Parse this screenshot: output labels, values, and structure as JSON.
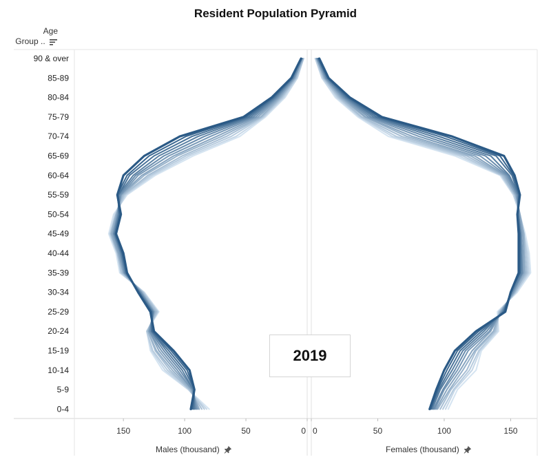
{
  "chart_data": {
    "type": "line",
    "title": "Resident Population Pyramid",
    "year": "2019",
    "age_axis_label": "Age Group ..",
    "age_axis_label_line1": "Age",
    "age_axis_label_line2": "Group ..",
    "categories": [
      "0-4",
      "5-9",
      "10-14",
      "15-19",
      "20-24",
      "25-29",
      "30-34",
      "35-39",
      "40-44",
      "45-49",
      "50-54",
      "55-59",
      "60-64",
      "65-69",
      "70-74",
      "75-79",
      "80-84",
      "85-89",
      "90 & over"
    ],
    "male_axis": {
      "label": "Males (thousand)",
      "ticks": [
        150,
        100,
        50,
        0
      ],
      "range": [
        0,
        190
      ]
    },
    "female_axis": {
      "label": "Females (thousand)",
      "ticks": [
        0,
        50,
        100,
        150
      ],
      "range": [
        0,
        170
      ]
    },
    "colors": {
      "oldest": "#d5e4f1",
      "newest": "#2b5a86"
    },
    "series": [
      {
        "males": [
          80,
          97,
          118,
          128,
          131,
          121,
          133,
          153,
          156,
          162,
          158,
          147,
          124,
          93,
          55,
          34,
          18,
          8,
          3
        ],
        "females": [
          103,
          110,
          124,
          128,
          141,
          140,
          155,
          165,
          164,
          161,
          157,
          152,
          142,
          108,
          58,
          35,
          18,
          8,
          3
        ]
      },
      {
        "males": [
          82,
          97,
          116,
          127,
          131,
          122,
          133,
          152,
          155,
          161,
          157,
          148,
          126,
          96,
          58,
          35,
          19,
          8,
          3
        ],
        "females": [
          101,
          108,
          121,
          127,
          140,
          141,
          154,
          164,
          163,
          160,
          157,
          152,
          143,
          111,
          61,
          36,
          19,
          8,
          3
        ]
      },
      {
        "males": [
          84,
          96,
          114,
          126,
          131,
          122,
          134,
          152,
          155,
          161,
          156,
          149,
          128,
          99,
          62,
          36,
          20,
          9,
          3
        ],
        "females": [
          99,
          107,
          119,
          126,
          139,
          141,
          154,
          163,
          162,
          160,
          157,
          153,
          143,
          114,
          64,
          37,
          20,
          9,
          3
        ]
      },
      {
        "males": [
          86,
          96,
          112,
          124,
          130,
          123,
          134,
          151,
          155,
          160,
          156,
          150,
          130,
          102,
          66,
          37,
          21,
          9,
          3
        ],
        "females": [
          97,
          105,
          117,
          124,
          138,
          142,
          153,
          162,
          161,
          160,
          157,
          153,
          144,
          117,
          68,
          38,
          21,
          9,
          4
        ]
      },
      {
        "males": [
          88,
          95,
          110,
          123,
          130,
          124,
          135,
          150,
          154,
          160,
          156,
          151,
          133,
          106,
          70,
          38,
          22,
          10,
          4
        ],
        "females": [
          95,
          104,
          114,
          123,
          137,
          142,
          153,
          161,
          160,
          160,
          157,
          154,
          145,
          120,
          72,
          40,
          22,
          10,
          4
        ]
      },
      {
        "males": [
          89,
          94,
          108,
          121,
          129,
          125,
          135,
          150,
          154,
          159,
          155,
          152,
          135,
          109,
          74,
          40,
          23,
          10,
          4
        ],
        "females": [
          94,
          102,
          112,
          121,
          135,
          143,
          152,
          160,
          160,
          159,
          157,
          154,
          146,
          123,
          76,
          41,
          23,
          10,
          4
        ]
      },
      {
        "males": [
          90,
          94,
          106,
          119,
          129,
          125,
          136,
          149,
          153,
          158,
          155,
          152,
          138,
          113,
          79,
          42,
          24,
          11,
          4
        ],
        "females": [
          93,
          100,
          110,
          118,
          134,
          143,
          152,
          159,
          159,
          158,
          156,
          155,
          147,
          127,
          81,
          43,
          24,
          11,
          4
        ]
      },
      {
        "males": [
          91,
          93,
          104,
          117,
          128,
          126,
          136,
          149,
          152,
          158,
          154,
          153,
          140,
          117,
          84,
          44,
          25,
          11,
          4
        ],
        "females": [
          92,
          99,
          108,
          116,
          132,
          144,
          151,
          159,
          158,
          158,
          156,
          155,
          148,
          131,
          86,
          45,
          25,
          11,
          5
        ]
      },
      {
        "males": [
          92,
          93,
          102,
          115,
          127,
          126,
          137,
          148,
          152,
          157,
          154,
          154,
          142,
          121,
          89,
          46,
          26,
          12,
          5
        ],
        "females": [
          91,
          97,
          106,
          114,
          130,
          144,
          151,
          158,
          158,
          157,
          156,
          156,
          149,
          135,
          91,
          47,
          26,
          12,
          5
        ]
      },
      {
        "males": [
          93,
          92,
          100,
          113,
          127,
          127,
          137,
          148,
          151,
          157,
          153,
          154,
          145,
          125,
          94,
          48,
          27,
          12,
          5
        ],
        "females": [
          90,
          96,
          104,
          112,
          128,
          145,
          150,
          157,
          157,
          157,
          155,
          156,
          151,
          139,
          96,
          49,
          27,
          12,
          5
        ]
      },
      {
        "males": [
          94,
          92,
          98,
          111,
          126,
          127,
          138,
          147,
          151,
          156,
          153,
          155,
          147,
          129,
          99,
          50,
          28,
          13,
          5
        ],
        "females": [
          90,
          95,
          102,
          110,
          126,
          145,
          150,
          157,
          157,
          157,
          155,
          157,
          152,
          142,
          101,
          51,
          28,
          13,
          6
        ]
      },
      {
        "males": [
          95,
          92,
          96,
          109,
          125,
          128,
          138,
          147,
          150,
          156,
          152,
          155,
          150,
          133,
          104,
          52,
          29,
          13,
          5
        ],
        "females": [
          89,
          94,
          100,
          108,
          124,
          146,
          150,
          156,
          156,
          156,
          155,
          157,
          153,
          145,
          106,
          53,
          29,
          13,
          6
        ]
      }
    ],
    "grid": false,
    "legend": "none"
  }
}
